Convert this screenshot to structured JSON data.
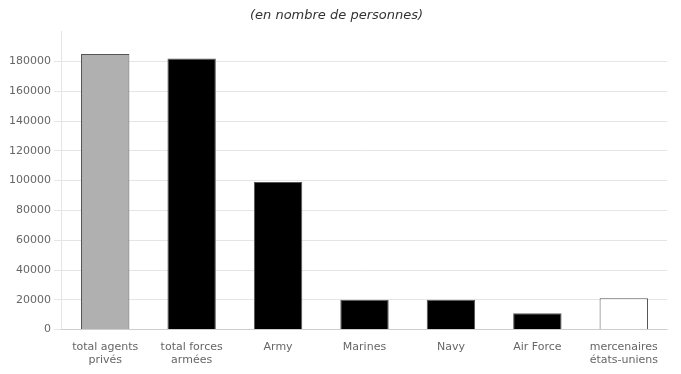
{
  "chart_data": {
    "type": "bar",
    "title": "(en nombre de personnes)",
    "categories": [
      "total agents\nprivés",
      "total forces\narmées",
      "Army",
      "Marines",
      "Navy",
      "Air Force",
      "mercenaires\nétats-uniens"
    ],
    "values": [
      185000,
      182000,
      99000,
      20000,
      20000,
      11000,
      21000
    ],
    "colors": [
      "#b0b0b0",
      "#000000",
      "#000000",
      "#000000",
      "#000000",
      "#000000",
      "#ffffff"
    ],
    "ylim": [
      0,
      200000
    ],
    "yticks": [
      0,
      20000,
      40000,
      60000,
      80000,
      100000,
      120000,
      140000,
      160000,
      180000
    ],
    "grid": true,
    "legend": false
  }
}
